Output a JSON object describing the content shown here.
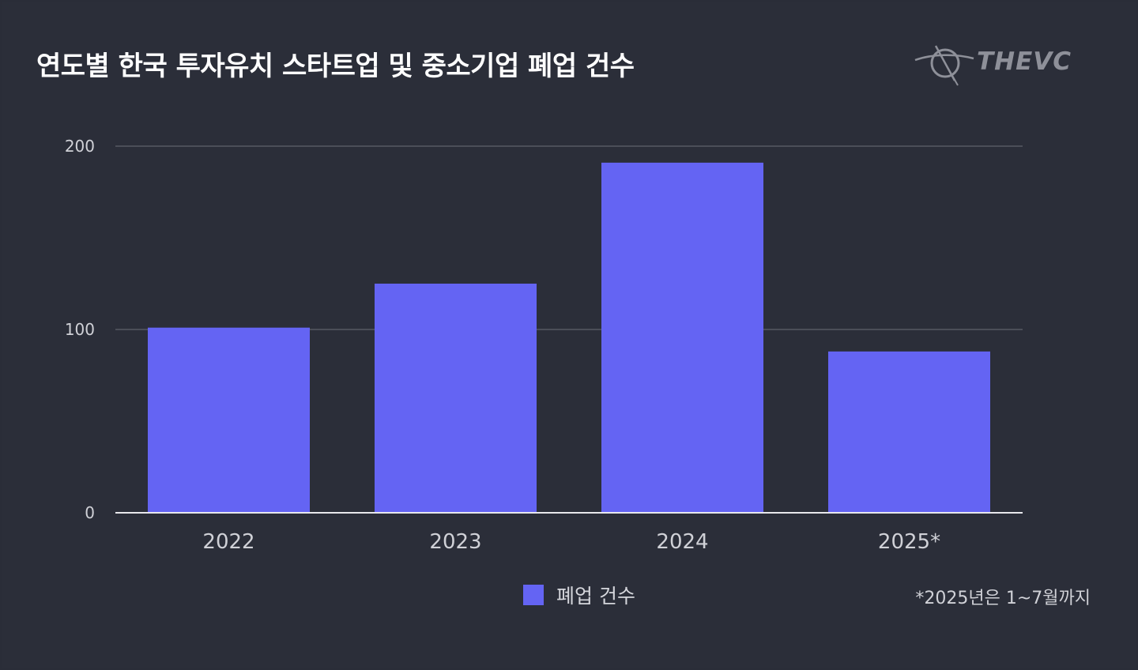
{
  "title": "연도별 한국 투자유치 스타트업 및 중소기업 폐업 건수",
  "logo": {
    "text": "THEVC",
    "icon": "thevc-logo-icon"
  },
  "colors": {
    "background": "#2b2e39",
    "bar": "#6464f3",
    "gridline": "#6b6e78",
    "axis": "#e8e8ec",
    "tick_label": "#d0d1d7"
  },
  "legend": {
    "label": "폐업 건수"
  },
  "footnote": "*2025년은 1~7월까지",
  "chart_data": {
    "type": "bar",
    "categories": [
      "2022",
      "2023",
      "2024",
      "2025*"
    ],
    "series": [
      {
        "name": "폐업 건수",
        "values": [
          101,
          125,
          191,
          88
        ]
      }
    ],
    "ylim": [
      0,
      200
    ],
    "yticks": [
      0,
      100,
      200
    ],
    "ytick_labels": [
      "0",
      "100",
      "200"
    ],
    "grid": true,
    "legend_position": "bottom",
    "xlabel": "",
    "ylabel": ""
  }
}
